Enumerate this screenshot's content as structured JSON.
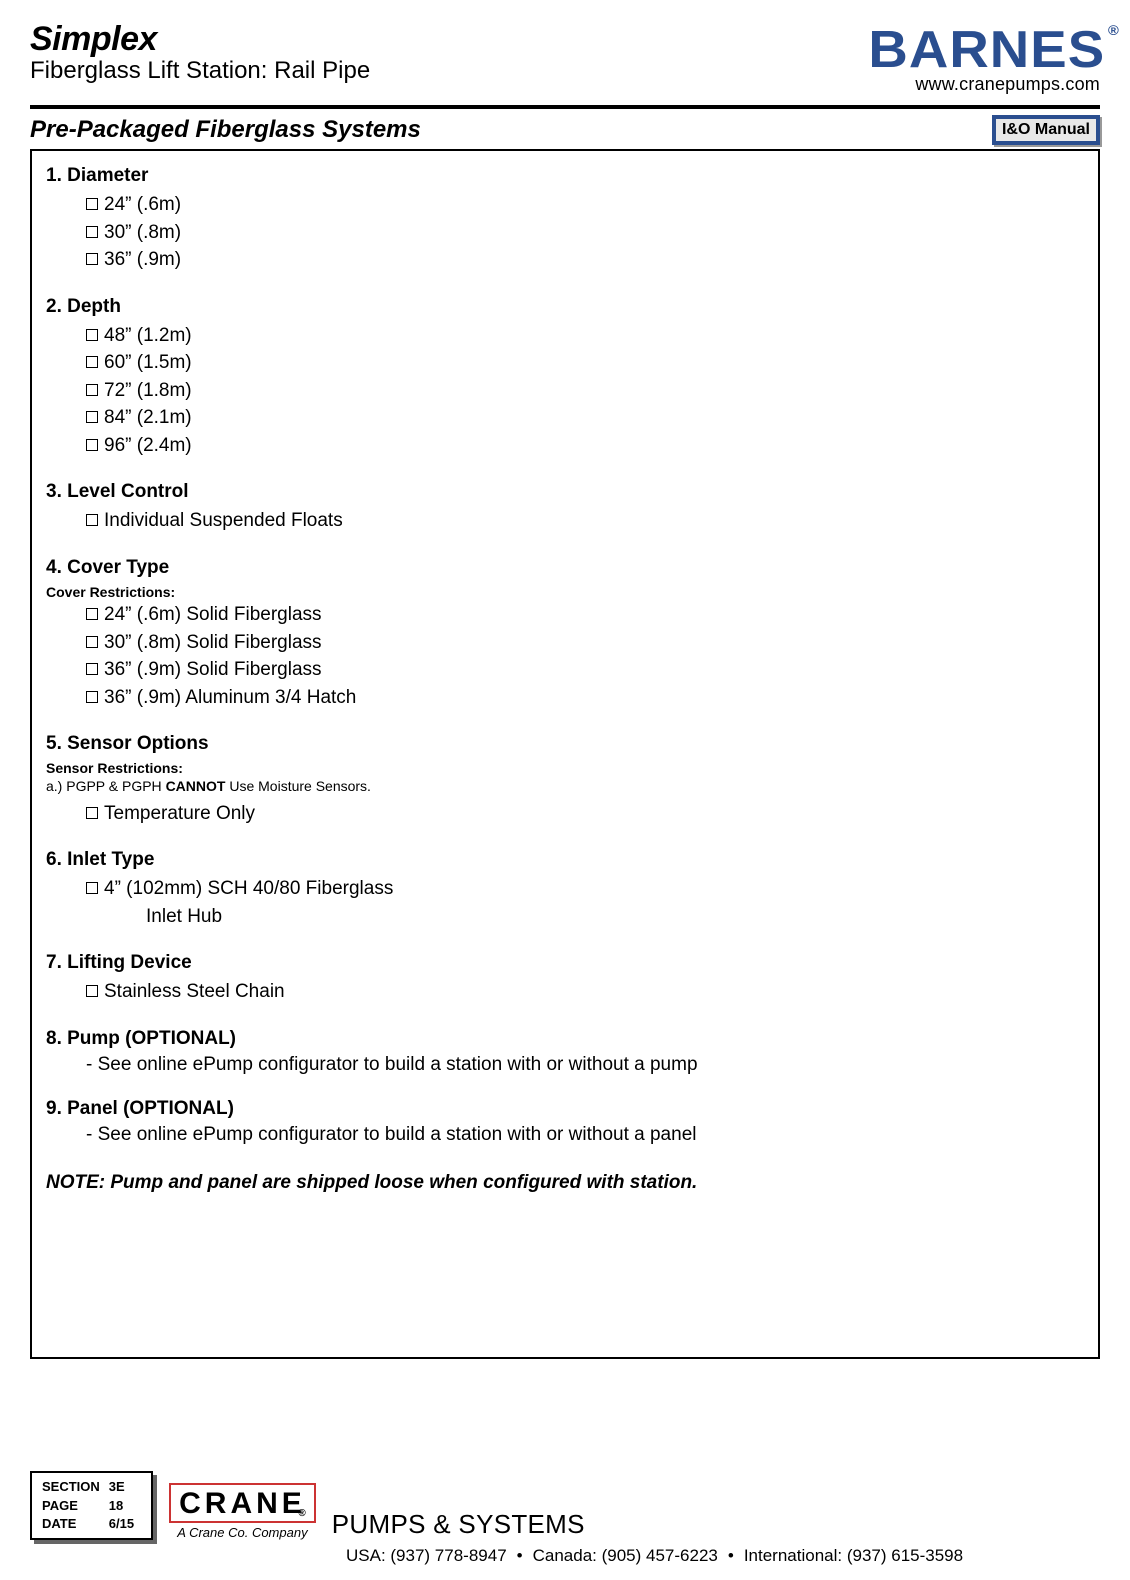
{
  "header": {
    "product_title": "Simplex",
    "product_subtitle": "Fiberglass Lift Station: Rail Pipe",
    "brand": "BARNES",
    "brand_reg": "®",
    "url": "www.cranepumps.com"
  },
  "section": {
    "title": "Pre-Packaged Fiberglass Systems",
    "io_label": "I&O Manual"
  },
  "specs": {
    "headings": {
      "diameter": "1. Diameter",
      "depth": "2. Depth",
      "level": "3. Level Control",
      "cover": "4. Cover Type",
      "cover_restrict": "Cover Restrictions:",
      "sensor": "5. Sensor Options",
      "sensor_restrict": "Sensor Restrictions:",
      "sensor_note_a": "a.) PGPP & PGPH ",
      "sensor_note_b": "CANNOT",
      "sensor_note_c": " Use Moisture Sensors.",
      "inlet": "6. Inlet Type",
      "lift": "7. Lifting Device",
      "pump": "8. Pump (OPTIONAL)",
      "panel": "9. Panel (OPTIONAL)"
    },
    "diameter": [
      "24” (.6m)",
      "30” (.8m)",
      "36” (.9m)"
    ],
    "depth": [
      "48” (1.2m)",
      "60” (1.5m)",
      "72” (1.8m)",
      "84” (2.1m)",
      "96” (2.4m)"
    ],
    "level": [
      "Individual Suspended Floats"
    ],
    "cover": [
      "24” (.6m) Solid Fiberglass",
      "30” (.8m) Solid Fiberglass",
      "36” (.9m) Solid Fiberglass",
      "36” (.9m) Aluminum 3/4 Hatch"
    ],
    "sensor": [
      "Temperature Only"
    ],
    "inlet_a": "4” (102mm) SCH 40/80 Fiberglass",
    "inlet_b": "Inlet Hub",
    "lift": [
      "Stainless Steel Chain"
    ],
    "pump_note": "- See online ePump configurator to build a station with or without a pump",
    "panel_note": "- See online ePump configurator to build a station with or without a panel",
    "final_note": "NOTE: Pump and panel are shipped loose when configured with station."
  },
  "footer": {
    "section_label": "SECTION",
    "page_label": "PAGE",
    "date_label": "DATE",
    "section": "3E",
    "page": "18",
    "date": "6/15",
    "crane": "CRANE",
    "crane_reg": "®",
    "crane_sub": "A Crane Co. Company",
    "pumps_systems": "PUMPS & SYSTEMS",
    "usa": "USA: (937) 778-8947",
    "canada": "Canada: (905) 457-6223",
    "intl": "International: (937) 615-3598",
    "bullet": "•"
  },
  "style": {
    "brand_color": "#2a4e8f",
    "crane_border": "#c33",
    "text_color": "#000",
    "background": "#fff"
  }
}
